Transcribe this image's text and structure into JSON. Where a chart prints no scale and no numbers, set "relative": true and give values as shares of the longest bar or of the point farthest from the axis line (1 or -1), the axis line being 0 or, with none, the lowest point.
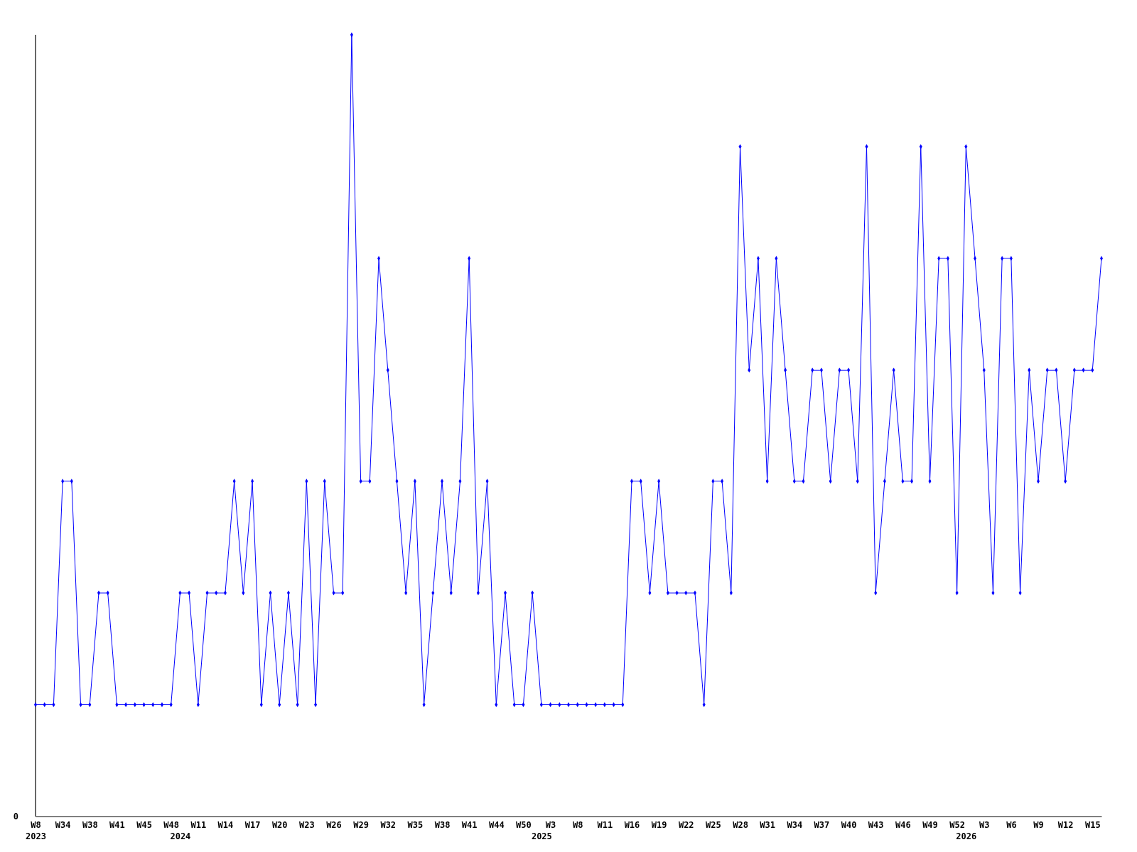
{
  "chart_data": {
    "type": "line",
    "relative": true,
    "color": "#0000ff",
    "marker": "diamond",
    "line_style": "solid",
    "categories": [
      "W8\n2023",
      null,
      null,
      "W34",
      null,
      null,
      "W38",
      null,
      null,
      "W41",
      null,
      null,
      "W45",
      null,
      null,
      "W48",
      "\n2024",
      null,
      "W11",
      null,
      null,
      "W14",
      null,
      null,
      "W17",
      null,
      null,
      "W20",
      null,
      null,
      "W23",
      null,
      null,
      "W26",
      null,
      null,
      "W29",
      null,
      null,
      "W32",
      null,
      null,
      "W35",
      null,
      null,
      "W38",
      null,
      null,
      "W41",
      null,
      null,
      "W44",
      null,
      null,
      "W50",
      null,
      "\n2025",
      "W3",
      null,
      null,
      "W8",
      null,
      null,
      "W11",
      null,
      null,
      "W16",
      null,
      null,
      "W19",
      null,
      null,
      "W22",
      null,
      null,
      "W25",
      null,
      null,
      "W28",
      null,
      null,
      "W31",
      null,
      null,
      "W34",
      null,
      null,
      "W37",
      null,
      null,
      "W40",
      null,
      null,
      "W43",
      null,
      null,
      "W46",
      null,
      null,
      "W49",
      null,
      null,
      "W52",
      "\n2026",
      null,
      "W3",
      null,
      null,
      "W6",
      null,
      null,
      "W9",
      null,
      null,
      "W12",
      null,
      null,
      "W15",
      null
    ],
    "values": [
      0.143,
      0.143,
      0.143,
      0.429,
      0.429,
      0.143,
      0.143,
      0.286,
      0.286,
      0.143,
      0.143,
      0.143,
      0.143,
      0.143,
      0.143,
      0.143,
      0.286,
      0.286,
      0.143,
      0.286,
      0.286,
      0.286,
      0.429,
      0.286,
      0.429,
      0.143,
      0.286,
      0.143,
      0.286,
      0.143,
      0.429,
      0.143,
      0.429,
      0.286,
      0.286,
      1,
      0.429,
      0.429,
      0.714,
      0.571,
      0.429,
      0.286,
      0.429,
      0.143,
      0.286,
      0.429,
      0.286,
      0.429,
      0.714,
      0.286,
      0.429,
      0.143,
      0.286,
      0.143,
      0.143,
      0.286,
      0.143,
      0.143,
      0.143,
      0.143,
      0.143,
      0.143,
      0.143,
      0.143,
      0.143,
      0.143,
      0.429,
      0.429,
      0.286,
      0.429,
      0.286,
      0.286,
      0.286,
      0.286,
      0.143,
      0.429,
      0.429,
      0.286,
      0.857,
      0.571,
      0.714,
      0.429,
      0.714,
      0.571,
      0.429,
      0.429,
      0.571,
      0.571,
      0.429,
      0.571,
      0.571,
      0.429,
      0.857,
      0.286,
      0.429,
      0.571,
      0.429,
      0.429,
      0.857,
      0.429,
      0.714,
      0.714,
      0.286,
      0.857,
      0.714,
      0.571,
      0.286,
      0.714,
      0.714,
      0.286,
      0.571,
      0.429,
      0.571,
      0.571,
      0.429,
      0.571,
      0.571,
      0.571,
      0.714
    ],
    "annotations": [
      "0"
    ]
  }
}
